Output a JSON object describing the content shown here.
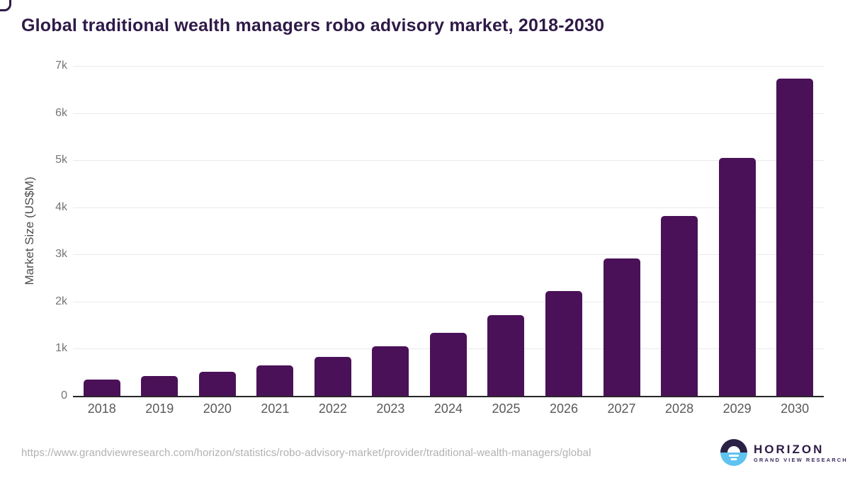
{
  "title": "Global traditional wealth managers robo advisory market, 2018-2030",
  "chart_data": {
    "type": "bar",
    "title": "Global traditional wealth managers robo advisory market, 2018-2030",
    "categories": [
      "2018",
      "2019",
      "2020",
      "2021",
      "2022",
      "2023",
      "2024",
      "2025",
      "2026",
      "2027",
      "2028",
      "2029",
      "2030"
    ],
    "values": [
      340,
      425,
      510,
      650,
      820,
      1050,
      1340,
      1720,
      2230,
      2920,
      3815,
      5050,
      6725
    ],
    "xlabel": "",
    "ylabel": "Market Size (US$M)",
    "ylim": [
      0,
      7000
    ],
    "ytick_values": [
      0,
      1000,
      2000,
      3000,
      4000,
      5000,
      6000,
      7000
    ],
    "ytick_labels": [
      "0",
      "1k",
      "2k",
      "3k",
      "4k",
      "5k",
      "6k",
      "7k"
    ],
    "grid": "horizontal",
    "legend": "none",
    "bar_color": "#4a1158"
  },
  "colors": {
    "title": "#2e1a47",
    "bar": "#4a1158",
    "gridline": "#e9e9e9",
    "axis_line": "#262626",
    "tick_label": "#757575",
    "x_label": "#595959",
    "source_url": "#b1b1b4",
    "logo_dark": "#2b2145",
    "logo_blue": "#5ec3ef"
  },
  "footer": {
    "source_url": "https://www.grandviewresearch.com/horizon/statistics/robo-advisory-market/provider/traditional-wealth-managers/global",
    "logo": {
      "brand": "HORIZON",
      "subtitle": "GRAND VIEW RESEARCH"
    }
  }
}
